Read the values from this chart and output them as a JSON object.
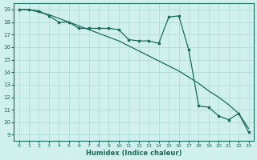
{
  "xlabel": "Humidex (Indice chaleur)",
  "bg_color": "#cff0ec",
  "grid_color": "#b0d8d4",
  "line_color": "#1a6b5e",
  "xlim": [
    -0.5,
    23.5
  ],
  "ylim": [
    8.5,
    19.5
  ],
  "yticks": [
    9,
    10,
    11,
    12,
    13,
    14,
    15,
    16,
    17,
    18,
    19
  ],
  "xticks": [
    0,
    1,
    2,
    3,
    4,
    5,
    6,
    7,
    8,
    9,
    10,
    11,
    12,
    13,
    14,
    15,
    16,
    17,
    18,
    19,
    20,
    21,
    22,
    23
  ],
  "line1_x": [
    0,
    1,
    2,
    3,
    4,
    5,
    6,
    7,
    8,
    9,
    10,
    11,
    12,
    13,
    14,
    15,
    16,
    17,
    18,
    19,
    20,
    21,
    22,
    23
  ],
  "line1_y": [
    19,
    19,
    18.8,
    18.6,
    18.3,
    18.0,
    17.7,
    17.4,
    17.1,
    16.8,
    16.5,
    16.1,
    15.7,
    15.3,
    14.9,
    14.5,
    14.1,
    13.6,
    13.1,
    12.5,
    12.0,
    11.4,
    10.7,
    9.5
  ],
  "line2_x": [
    0,
    1,
    2,
    3,
    4,
    5,
    6,
    7,
    8,
    9,
    10,
    11,
    12,
    13,
    14,
    15,
    16,
    17,
    18,
    19,
    20,
    21,
    22,
    23
  ],
  "line2_y": [
    19,
    19,
    18.9,
    18.5,
    18.0,
    18.0,
    17.5,
    17.5,
    17.5,
    17.5,
    17.4,
    16.6,
    16.5,
    16.5,
    16.3,
    18.4,
    18.5,
    15.8,
    11.3,
    11.2,
    10.5,
    10.2,
    10.7,
    9.2
  ]
}
